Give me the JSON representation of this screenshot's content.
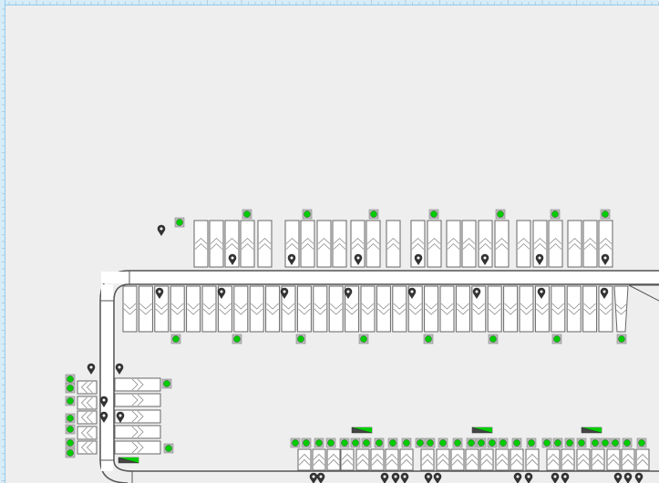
{
  "canvas": {
    "background": "#eeeeee",
    "ruler_color": "#8fcdf0"
  },
  "legend": {
    "slot_icon": "parking-slot-chevron-icon",
    "sensor_icon": "green-sensor-icon",
    "marker_icon": "map-pin-icon",
    "gauge_icon": "wedge-gauge-icon"
  },
  "colors": {
    "slot_fill": "#ffffff",
    "slot_stroke": "#666666",
    "sensor_fill": "#00cc00",
    "sensor_frame": "#888888",
    "marker": "#333333",
    "gauge_dark": "#444444",
    "gauge_green": "#00cc00",
    "road_stroke": "#555555"
  }
}
